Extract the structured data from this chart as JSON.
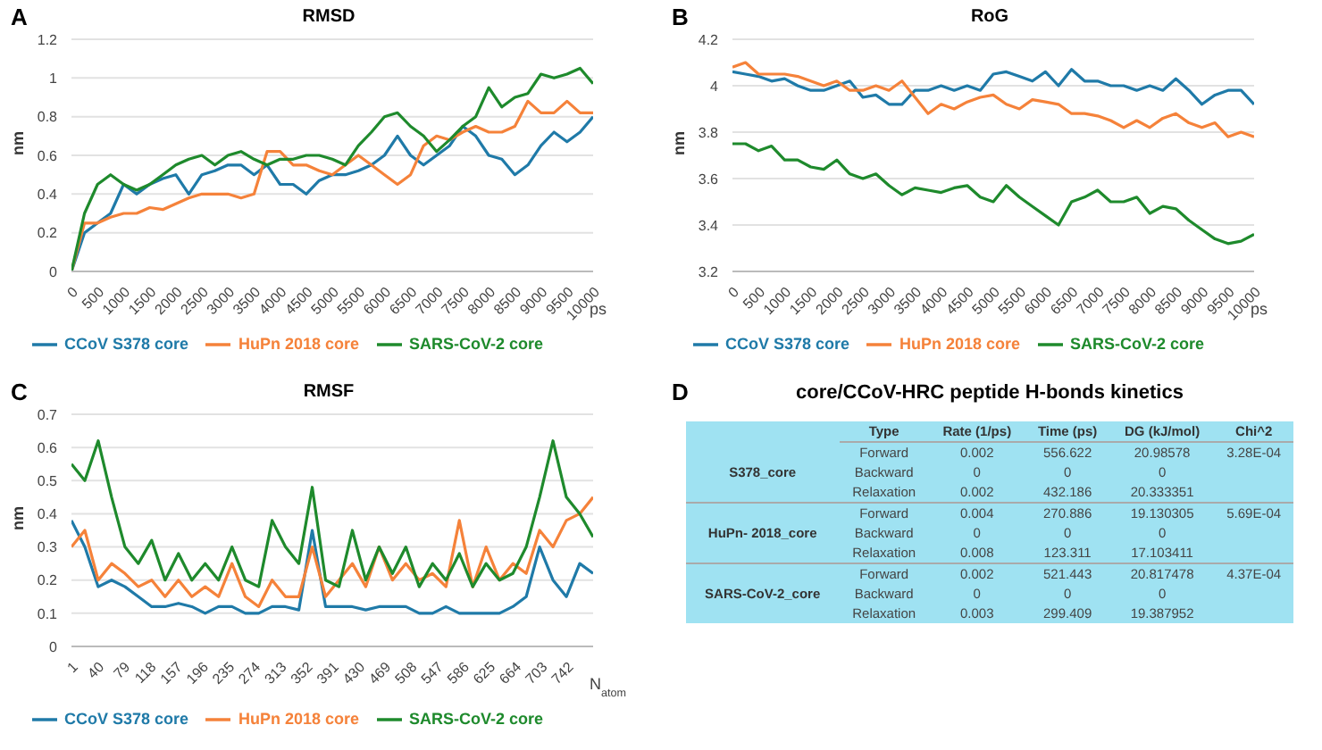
{
  "chart_data": [
    {
      "type": "line",
      "title": "RMSD",
      "xlabel": "ps",
      "ylabel": "nm",
      "annotations": [
        "A"
      ],
      "grid": "y",
      "legend": "bottom",
      "x": [
        0,
        250,
        500,
        750,
        1000,
        1250,
        1500,
        1750,
        2000,
        2250,
        2500,
        2750,
        3000,
        3250,
        3500,
        3750,
        4000,
        4250,
        4500,
        4750,
        5000,
        5250,
        5500,
        5750,
        6000,
        6250,
        6500,
        6750,
        7000,
        7250,
        7500,
        7750,
        8000,
        8250,
        8500,
        8750,
        9000,
        9250,
        9500,
        9750,
        10000
      ],
      "xlim": [
        0,
        10000
      ],
      "xticks": [
        0,
        500,
        1000,
        1500,
        2000,
        2500,
        3000,
        3500,
        4000,
        4500,
        5000,
        5500,
        6000,
        6500,
        7000,
        7500,
        8000,
        8500,
        9000,
        9500,
        10000
      ],
      "ylim": [
        0,
        1.2
      ],
      "yticks": [
        0,
        0.2,
        0.4,
        0.6,
        0.8,
        1,
        1.2
      ],
      "series": [
        {
          "name": "CCoV S378 core",
          "color": "#1f7aa8",
          "values": [
            0,
            0.2,
            0.25,
            0.3,
            0.45,
            0.4,
            0.45,
            0.48,
            0.5,
            0.4,
            0.5,
            0.52,
            0.55,
            0.55,
            0.5,
            0.55,
            0.45,
            0.45,
            0.4,
            0.47,
            0.5,
            0.5,
            0.52,
            0.55,
            0.6,
            0.7,
            0.6,
            0.55,
            0.6,
            0.65,
            0.75,
            0.7,
            0.6,
            0.58,
            0.5,
            0.55,
            0.65,
            0.72,
            0.67,
            0.72,
            0.8
          ]
        },
        {
          "name": "HuPn 2018 core",
          "color": "#f5823a",
          "values": [
            0,
            0.25,
            0.25,
            0.28,
            0.3,
            0.3,
            0.33,
            0.32,
            0.35,
            0.38,
            0.4,
            0.4,
            0.4,
            0.38,
            0.4,
            0.62,
            0.62,
            0.55,
            0.55,
            0.52,
            0.5,
            0.55,
            0.6,
            0.55,
            0.5,
            0.45,
            0.5,
            0.65,
            0.7,
            0.68,
            0.72,
            0.75,
            0.72,
            0.72,
            0.75,
            0.88,
            0.82,
            0.82,
            0.88,
            0.82,
            0.82
          ]
        },
        {
          "name": "SARS-CoV-2 core",
          "color": "#1e8a2c",
          "values": [
            0,
            0.3,
            0.45,
            0.5,
            0.45,
            0.42,
            0.45,
            0.5,
            0.55,
            0.58,
            0.6,
            0.55,
            0.6,
            0.62,
            0.58,
            0.55,
            0.58,
            0.58,
            0.6,
            0.6,
            0.58,
            0.55,
            0.65,
            0.72,
            0.8,
            0.82,
            0.75,
            0.7,
            0.62,
            0.68,
            0.75,
            0.8,
            0.95,
            0.85,
            0.9,
            0.92,
            1.02,
            1,
            1.02,
            1.05,
            0.97
          ]
        }
      ]
    },
    {
      "type": "line",
      "title": "RoG",
      "xlabel": "ps",
      "ylabel": "nm",
      "annotations": [
        "B"
      ],
      "grid": "y",
      "legend": "bottom",
      "x": [
        0,
        250,
        500,
        750,
        1000,
        1250,
        1500,
        1750,
        2000,
        2250,
        2500,
        2750,
        3000,
        3250,
        3500,
        3750,
        4000,
        4250,
        4500,
        4750,
        5000,
        5250,
        5500,
        5750,
        6000,
        6250,
        6500,
        6750,
        7000,
        7250,
        7500,
        7750,
        8000,
        8250,
        8500,
        8750,
        9000,
        9250,
        9500,
        9750,
        10000
      ],
      "xlim": [
        0,
        10000
      ],
      "xticks": [
        0,
        500,
        1000,
        1500,
        2000,
        2500,
        3000,
        3500,
        4000,
        4500,
        5000,
        5500,
        6000,
        6500,
        7000,
        7500,
        8000,
        8500,
        9000,
        9500,
        10000
      ],
      "ylim": [
        3.2,
        4.2
      ],
      "yticks": [
        3.2,
        3.4,
        3.6,
        3.8,
        4,
        4.2
      ],
      "series": [
        {
          "name": "CCoV S378 core",
          "color": "#1f7aa8",
          "values": [
            4.06,
            4.05,
            4.04,
            4.02,
            4.03,
            4,
            3.98,
            3.98,
            4,
            4.02,
            3.95,
            3.96,
            3.92,
            3.92,
            3.98,
            3.98,
            4,
            3.98,
            4,
            3.98,
            4.05,
            4.06,
            4.04,
            4.02,
            4.06,
            4,
            4.07,
            4.02,
            4.02,
            4,
            4,
            3.98,
            4,
            3.98,
            4.03,
            3.98,
            3.92,
            3.96,
            3.98,
            3.98,
            3.92
          ]
        },
        {
          "name": "HuPn 2018 core",
          "color": "#f5823a",
          "values": [
            4.08,
            4.1,
            4.05,
            4.05,
            4.05,
            4.04,
            4.02,
            4,
            4.02,
            3.98,
            3.98,
            4,
            3.98,
            4.02,
            3.95,
            3.88,
            3.92,
            3.9,
            3.93,
            3.95,
            3.96,
            3.92,
            3.9,
            3.94,
            3.93,
            3.92,
            3.88,
            3.88,
            3.87,
            3.85,
            3.82,
            3.85,
            3.82,
            3.86,
            3.88,
            3.84,
            3.82,
            3.84,
            3.78,
            3.8,
            3.78
          ]
        },
        {
          "name": "SARS-CoV-2 core",
          "color": "#1e8a2c",
          "values": [
            3.75,
            3.75,
            3.72,
            3.74,
            3.68,
            3.68,
            3.65,
            3.64,
            3.68,
            3.62,
            3.6,
            3.62,
            3.57,
            3.53,
            3.56,
            3.55,
            3.54,
            3.56,
            3.57,
            3.52,
            3.5,
            3.57,
            3.52,
            3.48,
            3.44,
            3.4,
            3.5,
            3.52,
            3.55,
            3.5,
            3.5,
            3.52,
            3.45,
            3.48,
            3.47,
            3.42,
            3.38,
            3.34,
            3.32,
            3.33,
            3.36
          ]
        }
      ]
    },
    {
      "type": "line",
      "title": "RMSF",
      "xlabel": "N$_{atom}$",
      "ylabel": "nm",
      "annotations": [
        "C"
      ],
      "grid": "y",
      "legend": "bottom",
      "x": [
        1,
        21,
        41,
        61,
        81,
        101,
        121,
        141,
        161,
        181,
        201,
        221,
        241,
        261,
        281,
        301,
        321,
        341,
        361,
        381,
        401,
        421,
        441,
        461,
        481,
        501,
        521,
        541,
        561,
        581,
        601,
        621,
        641,
        661,
        681,
        701,
        721,
        741,
        761,
        781
      ],
      "xlim": [
        1,
        781
      ],
      "xticks": [
        1,
        40,
        79,
        118,
        157,
        196,
        235,
        274,
        313,
        352,
        391,
        430,
        469,
        508,
        547,
        586,
        625,
        664,
        703,
        742
      ],
      "ylim": [
        0,
        0.7
      ],
      "yticks": [
        0,
        0.1,
        0.2,
        0.3,
        0.4,
        0.5,
        0.6,
        0.7
      ],
      "series": [
        {
          "name": "CCoV S378 core",
          "color": "#1f7aa8",
          "values": [
            0.38,
            0.3,
            0.18,
            0.2,
            0.18,
            0.15,
            0.12,
            0.12,
            0.13,
            0.12,
            0.1,
            0.12,
            0.12,
            0.1,
            0.1,
            0.12,
            0.12,
            0.11,
            0.35,
            0.12,
            0.12,
            0.12,
            0.11,
            0.12,
            0.12,
            0.12,
            0.1,
            0.1,
            0.12,
            0.1,
            0.1,
            0.1,
            0.1,
            0.12,
            0.15,
            0.3,
            0.2,
            0.15,
            0.25,
            0.22
          ]
        },
        {
          "name": "HuPn 2018 core",
          "color": "#f5823a",
          "values": [
            0.3,
            0.35,
            0.2,
            0.25,
            0.22,
            0.18,
            0.2,
            0.15,
            0.2,
            0.15,
            0.18,
            0.15,
            0.25,
            0.15,
            0.12,
            0.2,
            0.15,
            0.15,
            0.3,
            0.15,
            0.2,
            0.25,
            0.18,
            0.3,
            0.2,
            0.25,
            0.2,
            0.22,
            0.18,
            0.38,
            0.18,
            0.3,
            0.2,
            0.25,
            0.22,
            0.35,
            0.3,
            0.38,
            0.4,
            0.45
          ]
        },
        {
          "name": "SARS-CoV-2 core",
          "color": "#1e8a2c",
          "values": [
            0.55,
            0.5,
            0.62,
            0.45,
            0.3,
            0.25,
            0.32,
            0.2,
            0.28,
            0.2,
            0.25,
            0.2,
            0.3,
            0.2,
            0.18,
            0.38,
            0.3,
            0.25,
            0.48,
            0.2,
            0.18,
            0.35,
            0.2,
            0.3,
            0.22,
            0.3,
            0.18,
            0.25,
            0.2,
            0.28,
            0.18,
            0.25,
            0.2,
            0.22,
            0.3,
            0.45,
            0.62,
            0.45,
            0.4,
            0.33
          ]
        }
      ]
    },
    {
      "type": "other",
      "title": "core/CCoV-HRC peptide H-bonds kinetics",
      "annotations": [
        "D",
        "Type",
        "Rate (1/ps)",
        "Time (ps)",
        "DG (kJ/mol)",
        "Chi^2",
        "S378_core",
        "Forward",
        "0.002",
        "556.622",
        "20.98578",
        "3.28E-04",
        "Backward",
        "0",
        "0",
        "0",
        "Relaxation",
        "0.002",
        "432.186",
        "20.333351",
        "HuPn- 2018_core",
        "Forward",
        "0.004",
        "270.886",
        "19.130305",
        "5.69E-04",
        "Backward",
        "0",
        "0",
        "0",
        "Relaxation",
        "0.008",
        "123.311",
        "17.103411",
        "SARS-CoV-2_core",
        "Forward",
        "0.002",
        "521.443",
        "20.817478",
        "4.37E-04",
        "Backward",
        "0",
        "0",
        "0",
        "Relaxation",
        "0.003",
        "299.409",
        "19.387952"
      ]
    }
  ]
}
